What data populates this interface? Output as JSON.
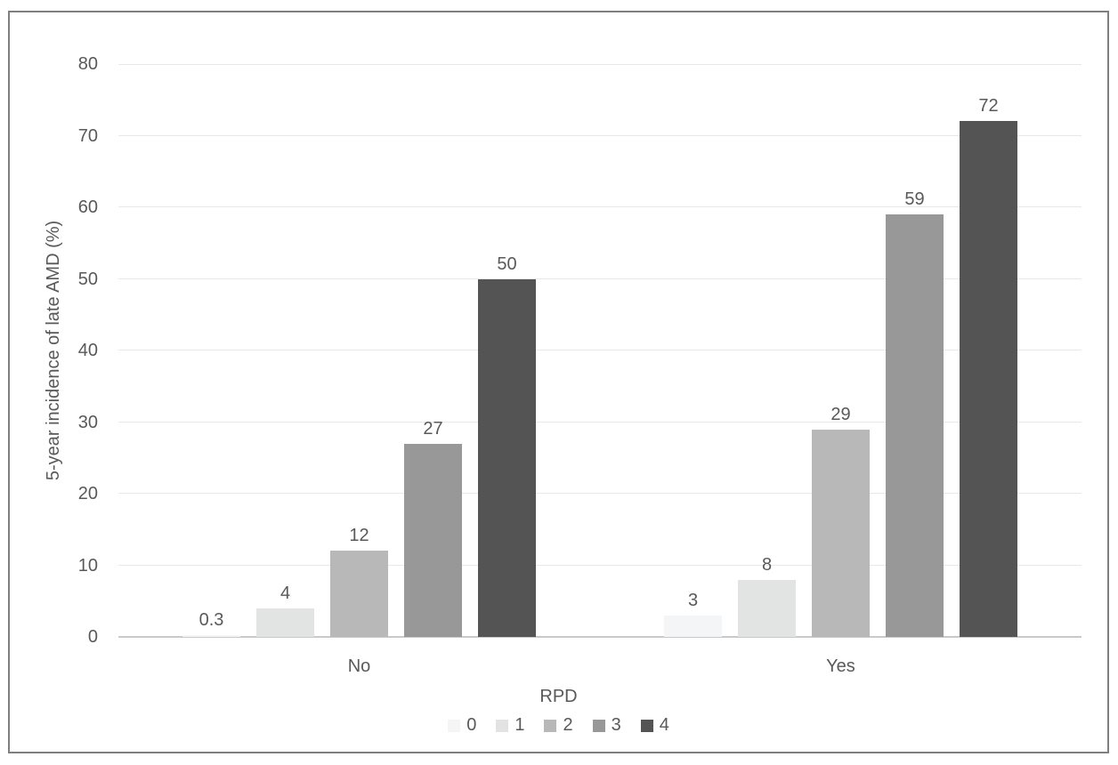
{
  "chart_data": {
    "type": "bar",
    "title": "",
    "categories": [
      "No",
      "Yes"
    ],
    "series": [
      {
        "name": "0",
        "color": "#f4f5f6",
        "values": [
          0.3,
          3
        ]
      },
      {
        "name": "1",
        "color": "#e2e3e3",
        "values": [
          4,
          8
        ]
      },
      {
        "name": "2",
        "color": "#b8b8b8",
        "values": [
          12,
          29
        ]
      },
      {
        "name": "3",
        "color": "#989898",
        "values": [
          27,
          59
        ]
      },
      {
        "name": "4",
        "color": "#545454",
        "values": [
          50,
          72
        ]
      }
    ],
    "data_labels": {
      "No": [
        "0.3",
        "4",
        "12",
        "27",
        "50"
      ],
      "Yes": [
        "3",
        "8",
        "29",
        "59",
        "72"
      ]
    },
    "xlabel": "RPD",
    "ylabel": "5-year incidence of late AMD (%)",
    "ylim": [
      0,
      80
    ],
    "ytick_step": 10,
    "ytick_labels": [
      "0",
      "10",
      "20",
      "30",
      "40",
      "50",
      "60",
      "70",
      "80"
    ],
    "grid": true,
    "legend_position": "bottom",
    "legend_entries": [
      "0",
      "1",
      "2",
      "3",
      "4"
    ]
  },
  "style_colors": {
    "frame_border": "#7f7f7f",
    "background": "#ffffff",
    "text": "#595959",
    "gridline": "#e8e8e8",
    "axis_line": "#c9c9c9"
  }
}
